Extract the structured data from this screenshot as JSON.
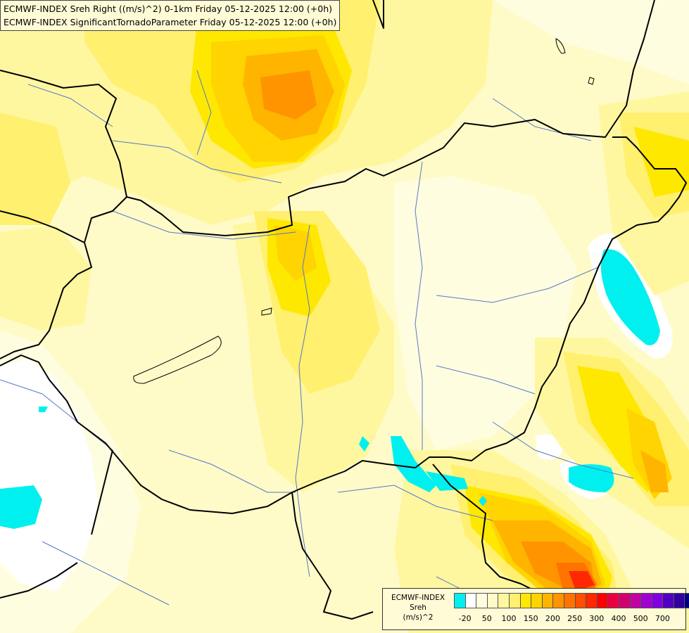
{
  "title": {
    "line1": "ECMWF-INDEX Sreh Right ((m/s)^2) 0-1km Friday 05-12-2025 12:00 (+0h)",
    "line2": "ECMWF-INDEX SignificantTornadoParameter Friday 05-12-2025 12:00 (+0h)"
  },
  "legend": {
    "line1": "ECMWF-INDEX",
    "line2": "Sreh",
    "line3": "(m/s)^2",
    "colors": [
      "#00f0f0",
      "#ffffff",
      "#fffde0",
      "#fffbc8",
      "#fff7a0",
      "#fff070",
      "#ffe800",
      "#ffd400",
      "#ffb400",
      "#ff9400",
      "#ff7400",
      "#ff5000",
      "#ff2800",
      "#ff0000",
      "#e80040",
      "#d00070",
      "#c000a0",
      "#a000d0",
      "#8000e0",
      "#5000c0",
      "#3000a0",
      "#000080"
    ],
    "tick_labels": [
      "-20",
      "50",
      "100",
      "150",
      "200",
      "250",
      "300",
      "400",
      "500",
      "700"
    ]
  },
  "map_colors": {
    "background": "#fffbc8",
    "pale": "#fffde0",
    "light_yellow": "#fff7a0",
    "yellow": "#fff070",
    "bright_yellow": "#ffe800",
    "gold": "#ffd400",
    "orange": "#ffb400",
    "dark_orange": "#ff9400",
    "red_orange": "#ff7400",
    "red": "#ff2800",
    "cyan": "#00f0f0",
    "white": "#ffffff",
    "border": "#000000",
    "river": "#5577cc"
  }
}
